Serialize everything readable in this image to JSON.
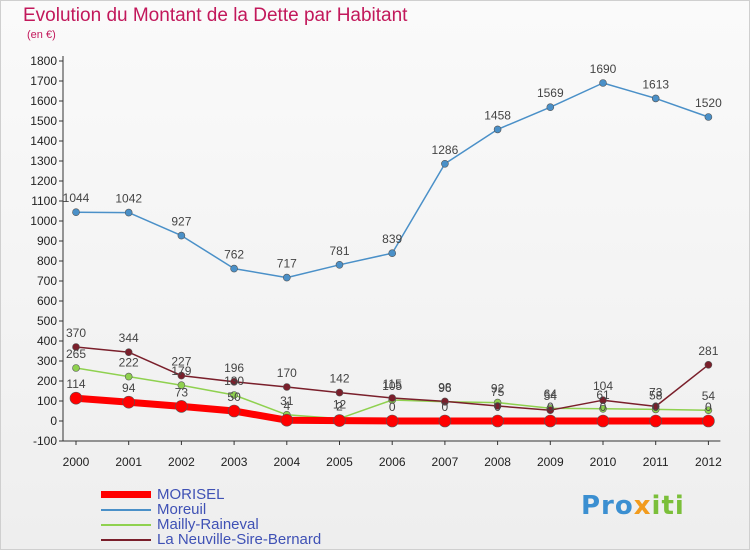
{
  "title": "Evolution du Montant de la Dette par Habitant",
  "subtitle": "(en €)",
  "logo": {
    "part1": "Pro",
    "part2": "x",
    "part3": "iti"
  },
  "chart_data": {
    "type": "line",
    "categories": [
      "2000",
      "2001",
      "2002",
      "2003",
      "2004",
      "2005",
      "2006",
      "2007",
      "2008",
      "2009",
      "2010",
      "2011",
      "2012"
    ],
    "ylim": [
      -100,
      1800
    ],
    "yticks": [
      -100,
      0,
      100,
      200,
      300,
      400,
      500,
      600,
      700,
      800,
      900,
      1000,
      1100,
      1200,
      1300,
      1400,
      1500,
      1600,
      1700,
      1800
    ],
    "grid": false,
    "legend_position": "bottom-left",
    "series": [
      {
        "name": "MORISEL",
        "color": "#ff0000",
        "values": [
          114,
          94,
          73,
          50,
          4,
          2,
          0,
          0,
          0,
          0,
          0,
          0,
          0
        ],
        "labels": [
          "114",
          "94",
          "73",
          "50",
          "4",
          "2",
          "0",
          "0",
          "0",
          "0",
          "0",
          "0",
          "0"
        ]
      },
      {
        "name": "Moreuil",
        "color": "#4a90c8",
        "values": [
          1044,
          1042,
          927,
          762,
          717,
          781,
          839,
          1286,
          1458,
          1569,
          1690,
          1613,
          1520
        ],
        "labels": [
          "1044",
          "1042",
          "927",
          "762",
          "717",
          "781",
          "839",
          "1286",
          "1458",
          "1569",
          "1690",
          "1613",
          "1520"
        ]
      },
      {
        "name": "Mailly-Raineval",
        "color": "#8fd14f",
        "values": [
          265,
          222,
          179,
          130,
          31,
          12,
          105,
          96,
          92,
          64,
          61,
          58,
          54
        ],
        "labels": [
          "265",
          "222",
          "179",
          "130",
          "31",
          "12",
          "105",
          "96",
          "92",
          "64",
          "61",
          "58",
          "54"
        ]
      },
      {
        "name": "La Neuville-Sire-Bernard",
        "color": "#7a1f2b",
        "values": [
          370,
          344,
          227,
          196,
          170,
          142,
          115,
          98,
          75,
          54,
          104,
          73,
          281
        ],
        "labels": [
          "370",
          "344",
          "227",
          "196",
          "170",
          "142",
          "115",
          "98",
          "75",
          "54",
          "104",
          "73",
          "281"
        ]
      }
    ]
  }
}
